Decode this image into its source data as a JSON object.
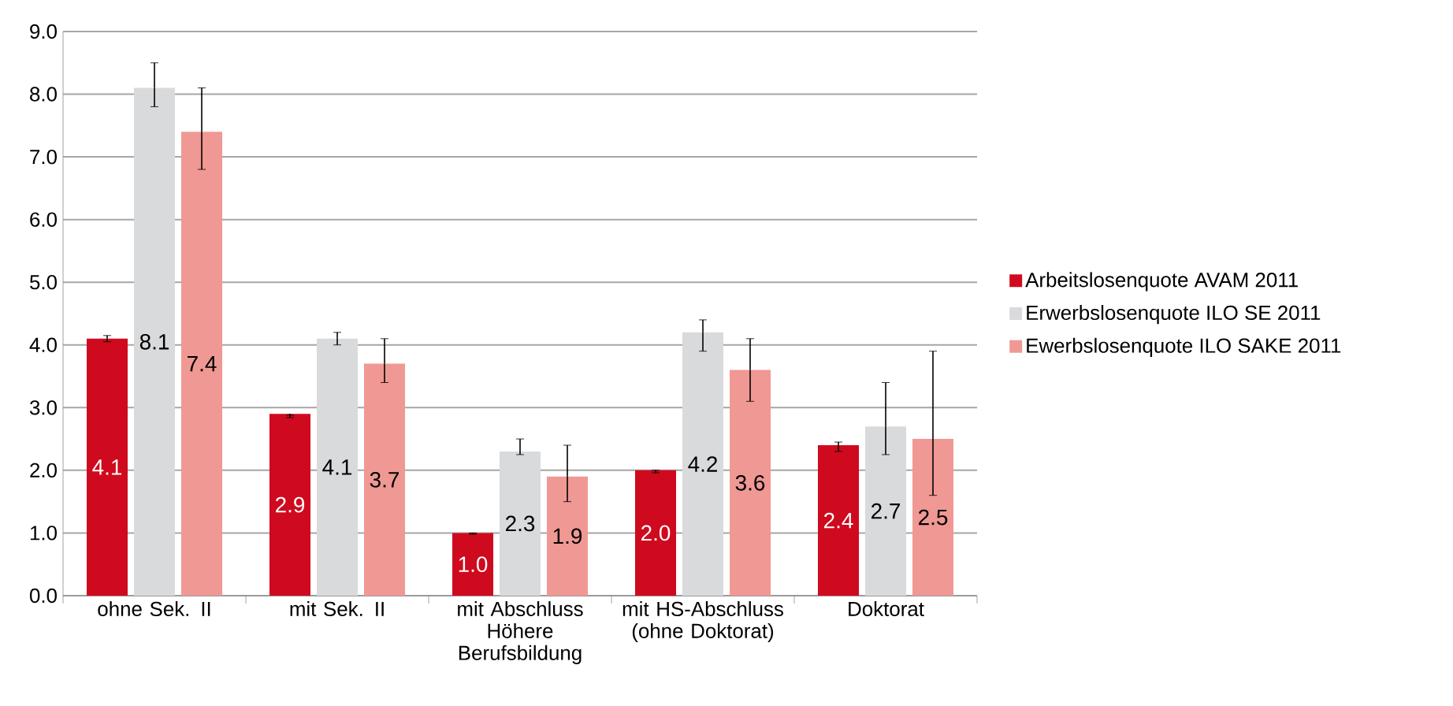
{
  "chart_data": {
    "type": "bar",
    "categories": [
      "ohne Sek. II",
      "mit Sek. II",
      "mit Abschluss Höhere Berufsbildung",
      "mit HS-Abschluss (ohne Doktorat)",
      "Doktorat"
    ],
    "series": [
      {
        "name": "Arbeitslosenquote AVAM 2011",
        "color": "#cf0a1e",
        "values": [
          4.1,
          2.9,
          1.0,
          2.0,
          2.4
        ],
        "value_labels": [
          "4.1",
          "2.9",
          "1.0",
          "2.0",
          "2.4"
        ],
        "errors": [
          [
            4.05,
            4.15
          ],
          [
            2.84,
            2.88
          ],
          [
            0.98,
            1.0
          ],
          [
            1.96,
            2.0
          ],
          [
            2.3,
            2.45
          ]
        ]
      },
      {
        "name": "Erwerbslosenquote ILO SE 2011",
        "color": "#d9dadc",
        "values": [
          8.1,
          4.1,
          2.3,
          4.2,
          2.7
        ],
        "value_labels": [
          "8.1",
          "4.1",
          "2.3",
          "4.2",
          "2.7"
        ],
        "errors": [
          [
            7.8,
            8.5
          ],
          [
            4.0,
            4.2
          ],
          [
            2.25,
            2.5
          ],
          [
            3.9,
            4.4
          ],
          [
            2.25,
            3.4
          ]
        ]
      },
      {
        "name": "Ewerbslosenquote ILO SAKE 2011",
        "color": "#f09894",
        "values": [
          7.4,
          3.7,
          1.9,
          3.6,
          2.5
        ],
        "value_labels": [
          "7.4",
          "3.7",
          "1.9",
          "3.6",
          "2.5"
        ],
        "errors": [
          [
            6.8,
            8.1
          ],
          [
            3.4,
            4.1
          ],
          [
            1.5,
            2.4
          ],
          [
            3.1,
            4.1
          ],
          [
            1.6,
            3.9
          ]
        ]
      }
    ],
    "ylim": [
      0,
      9
    ],
    "yticks": [
      {
        "value": 0,
        "label": "0.0"
      },
      {
        "value": 1,
        "label": "1.0"
      },
      {
        "value": 2,
        "label": "2.0"
      },
      {
        "value": 3,
        "label": "3.0"
      },
      {
        "value": 4,
        "label": "4.0"
      },
      {
        "value": 5,
        "label": "5.0"
      },
      {
        "value": 6,
        "label": "6.0"
      },
      {
        "value": 7,
        "label": "7.0"
      },
      {
        "value": 8,
        "label": "8.0"
      },
      {
        "value": 9,
        "label": "9.0"
      }
    ],
    "grid": "y",
    "legend": "right"
  }
}
